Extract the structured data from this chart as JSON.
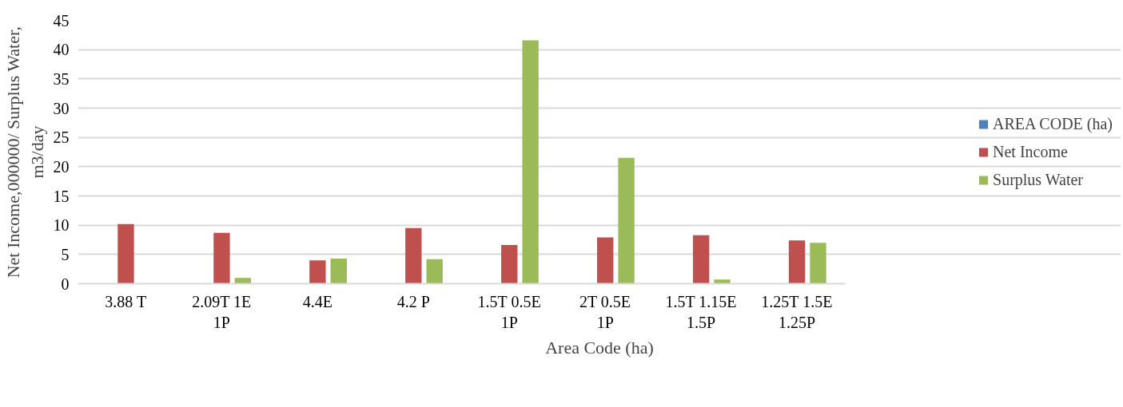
{
  "chart_data": {
    "type": "bar",
    "xlabel": "Area Code (ha)",
    "ylabel": "Net Income,000000/ Surplus Water, m3/day",
    "categories": [
      "3.88 T",
      "2.09T 1E 1P",
      "4.4E",
      "4.2 P",
      "1.5T 0.5E 1P",
      "2T 0.5E 1P",
      "1.5T 1.15E 1.5P",
      "1.25T 1.5E 1.25P"
    ],
    "series": [
      {
        "name": "AREA CODE (ha)",
        "color": "#4f81bd",
        "values": [
          null,
          null,
          null,
          null,
          null,
          null,
          null,
          null
        ]
      },
      {
        "name": "Net Income",
        "color": "#c0504d",
        "values": [
          10.2,
          8.7,
          4.0,
          9.5,
          6.6,
          7.9,
          8.3,
          7.4
        ]
      },
      {
        "name": "Surplus Water",
        "color": "#9bbb59",
        "values": [
          null,
          1.0,
          4.3,
          4.2,
          41.6,
          21.5,
          0.7,
          7.0
        ]
      }
    ],
    "ylim": [
      0,
      45
    ],
    "yticks": [
      0,
      5,
      10,
      15,
      20,
      25,
      30,
      35,
      40,
      45
    ],
    "grid": "y",
    "legend": "right"
  }
}
